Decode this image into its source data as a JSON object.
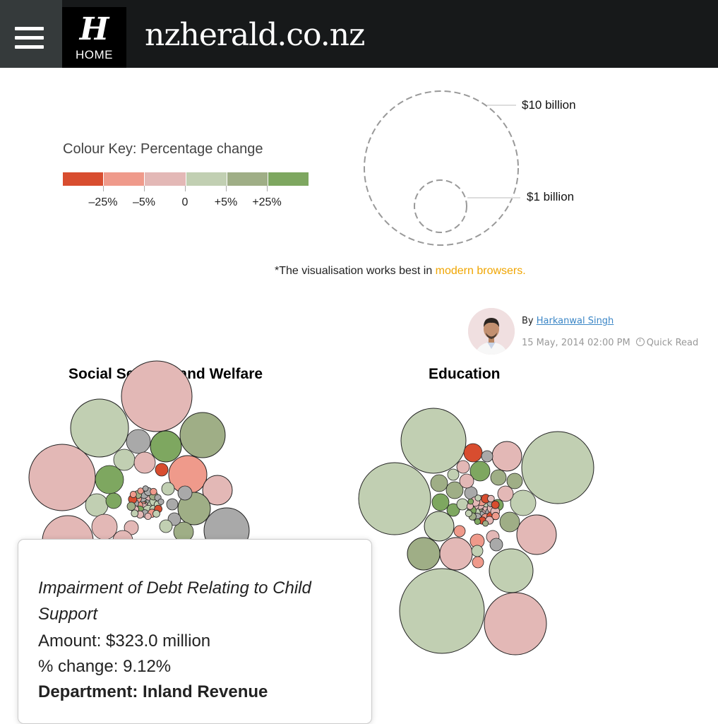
{
  "header": {
    "home_label": "HOME",
    "logo_mark": "H",
    "site_name": "nzherald.co.nz"
  },
  "colour_key": {
    "title": "Colour Key: Percentage change",
    "swatches": [
      "#d84d2f",
      "#ef9a8b",
      "#e3b8b6",
      "#c1cfb2",
      "#9fae86",
      "#7ea760"
    ],
    "labels": [
      "–25%",
      "–5%",
      "0",
      "+5%",
      "+25%"
    ]
  },
  "size_legend": {
    "large_label": "$10 billion",
    "small_label": "$1 billion"
  },
  "note": {
    "text": "*The visualisation works best in ",
    "link": "modern browsers."
  },
  "byline": {
    "by": "By",
    "author": "Harkanwal Singh",
    "date": "15 May, 2014 02:00 PM",
    "read": "Quick Read"
  },
  "charts": [
    {
      "title": "Social Security and Welfare"
    },
    {
      "title": "Education"
    }
  ],
  "colors": {
    "red": "#d84d2f",
    "salmon": "#ef9a8b",
    "pink": "#e3b8b6",
    "lightgreen": "#c1cfb2",
    "midgreen": "#9fae86",
    "green": "#7ea760",
    "grey": "#a9a9a9"
  },
  "tooltip": {
    "title": "Impairment of Debt Relating to Child Support",
    "amount": "Amount: $323.0 million",
    "change": "% change: 9.12%",
    "department": "Department: Inland Revenue"
  }
}
